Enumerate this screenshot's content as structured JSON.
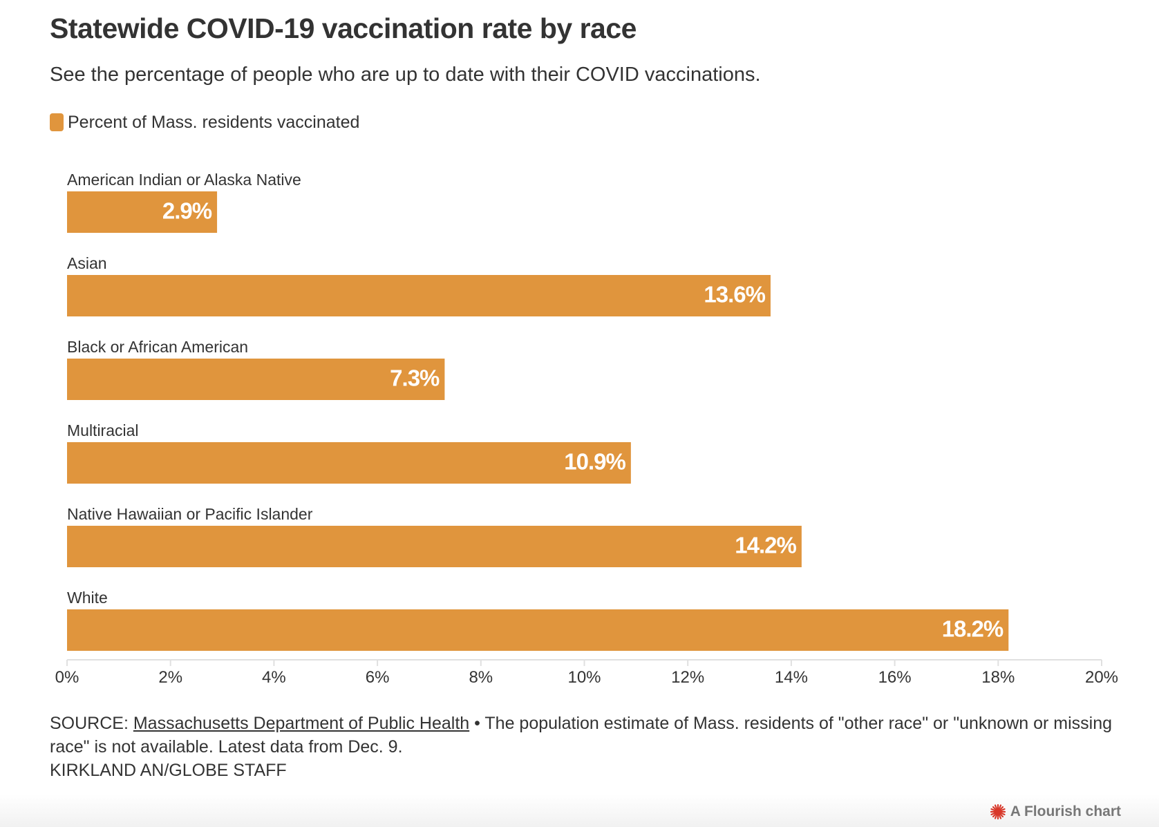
{
  "header": {
    "title": "Statewide COVID-19 vaccination rate by race",
    "subtitle": "See the percentage of people who are up to date with their COVID vaccinations."
  },
  "legend": {
    "label": "Percent of Mass. residents vaccinated",
    "color": "#e0953d"
  },
  "colors": {
    "bar": "#e0953d",
    "bar_label": "#ffffff",
    "axis": "#e0e0e0",
    "text": "#333333"
  },
  "chart_data": {
    "type": "bar",
    "orientation": "horizontal",
    "categories": [
      "American Indian or Alaska Native",
      "Asian",
      "Black or African American",
      "Multiracial",
      "Native Hawaiian or Pacific Islander",
      "White"
    ],
    "series": [
      {
        "name": "Percent of Mass. residents vaccinated",
        "values": [
          2.9,
          13.6,
          7.3,
          10.9,
          14.2,
          18.2
        ]
      }
    ],
    "value_labels": [
      "2.9%",
      "13.6%",
      "7.3%",
      "10.9%",
      "14.2%",
      "18.2%"
    ],
    "xlim": [
      0,
      20
    ],
    "xticks": [
      0,
      2,
      4,
      6,
      8,
      10,
      12,
      14,
      16,
      18,
      20
    ],
    "xtick_labels": [
      "0%",
      "2%",
      "4%",
      "6%",
      "8%",
      "10%",
      "12%",
      "14%",
      "16%",
      "18%",
      "20%"
    ],
    "grid": false,
    "legend_position": "top-left"
  },
  "footer": {
    "source_prefix": "SOURCE: ",
    "source_link": "Massachusetts Department of Public Health",
    "source_note": " • The population estimate of Mass. residents of \"other race\" or \"unknown or missing race\" is not available. Latest data from Dec. 9.",
    "credit": "KIRKLAND AN/GLOBE STAFF"
  },
  "branding": {
    "label": "A Flourish chart",
    "icon": "flourish-logo-icon"
  }
}
